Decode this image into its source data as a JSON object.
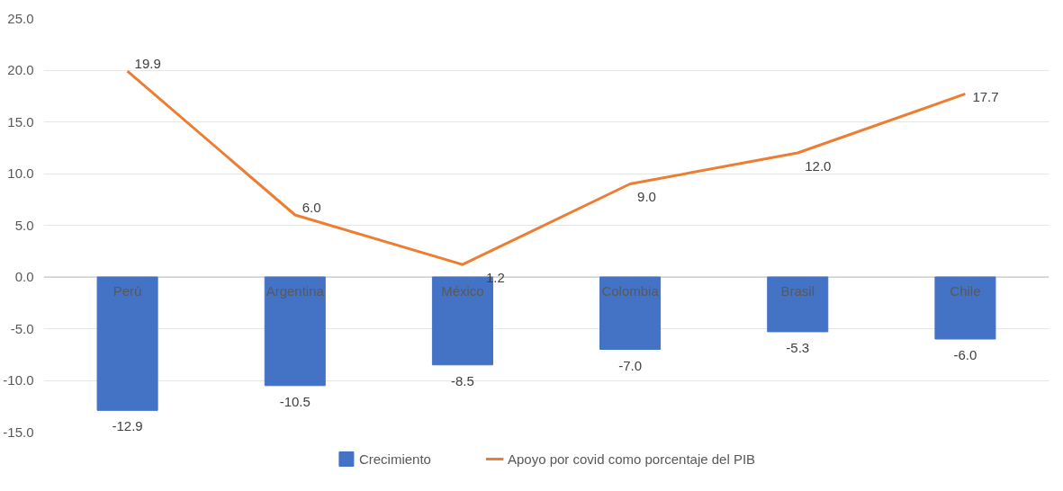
{
  "chart_data": {
    "type": "bar",
    "categories": [
      "Perú",
      "Argentina",
      "México",
      "Colombia",
      "Brasil",
      "Chile"
    ],
    "series": [
      {
        "name": "Crecimiento",
        "color": "#4472c4",
        "values": [
          -12.9,
          -10.5,
          -8.5,
          -7.0,
          -5.3,
          -6.0
        ],
        "value_labels": [
          "-12.9",
          "-10.5",
          "-8.5",
          "-7.0",
          "-5.3",
          "-6.0"
        ]
      },
      {
        "name": "Apoyo por covid como porcentaje del PIB",
        "type": "line",
        "color": "#ed7d31",
        "values": [
          19.9,
          6.0,
          1.2,
          9.0,
          12.0,
          17.7
        ],
        "value_labels": [
          "19.9",
          "6.0",
          "1.2",
          "9.0",
          "12.0",
          "17.7"
        ]
      }
    ],
    "ylim": [
      -15,
      25
    ],
    "yticks": [
      {
        "value": -15,
        "label": "-15.0"
      },
      {
        "value": -10,
        "label": "-10.0"
      },
      {
        "value": -5,
        "label": "-5.0"
      },
      {
        "value": 0,
        "label": "0.0"
      },
      {
        "value": 5,
        "label": "5.0"
      },
      {
        "value": 10,
        "label": "10.0"
      },
      {
        "value": 15,
        "label": "15.0"
      },
      {
        "value": 20,
        "label": "20.0"
      },
      {
        "value": 25,
        "label": "25.0"
      }
    ],
    "grid": "y",
    "legend": "bottom",
    "marker": "none",
    "line_style": "solid"
  }
}
